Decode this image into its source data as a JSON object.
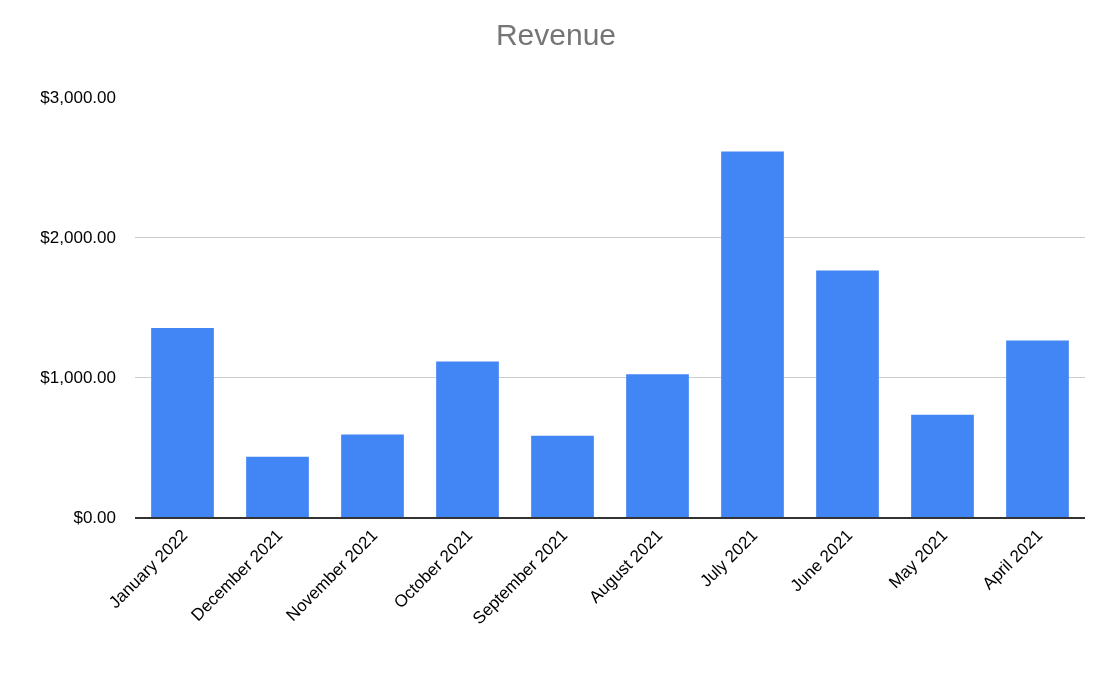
{
  "chart_data": {
    "type": "bar",
    "title": "Revenue",
    "categories": [
      "January 2022",
      "December 2021",
      "November 2021",
      "October 2021",
      "September 2021",
      "August 2021",
      "July 2021",
      "June 2021",
      "May 2021",
      "April 2021"
    ],
    "values": [
      1350,
      430,
      590,
      1110,
      580,
      1020,
      2610,
      1760,
      730,
      1260
    ],
    "color": "#4285f4",
    "ylim": [
      0,
      3000
    ],
    "yticks": [
      {
        "value": 0,
        "label": "$0.00"
      },
      {
        "value": 1000,
        "label": "$1,000.00"
      },
      {
        "value": 2000,
        "label": "$2,000.00"
      },
      {
        "value": 3000,
        "label": "$3,000.00"
      }
    ],
    "grid": "y"
  }
}
